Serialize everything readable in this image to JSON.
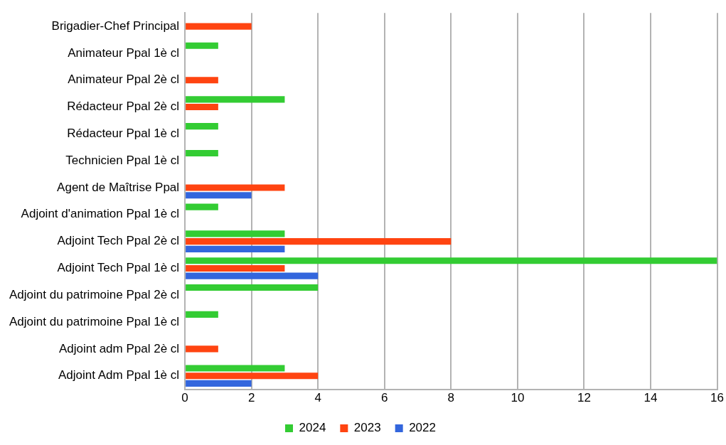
{
  "chart_data": {
    "type": "bar",
    "orientation": "horizontal",
    "categories": [
      "Brigadier-Chef Principal",
      "Animateur Ppal 1è cl",
      "Animateur Ppal 2è cl",
      "Rédacteur Ppal 2è cl",
      "Rédacteur Ppal 1è cl",
      "Technicien Ppal 1è cl",
      "Agent de Maîtrise Ppal",
      "Adjoint d'animation Ppal 1è cl",
      "Adjoint Tech Ppal 2è cl",
      "Adjoint Tech Ppal 1è cl",
      "Adjoint du patrimoine Ppal 2è cl",
      "Adjoint du patrimoine Ppal 1è cl",
      "Adjoint adm Ppal 2è cl",
      "Adjoint Adm Ppal 1è cl"
    ],
    "series": [
      {
        "name": "2024",
        "color": "#33cc33",
        "values": [
          0,
          1,
          0,
          3,
          1,
          1,
          0,
          1,
          3,
          16,
          4,
          1,
          0,
          3
        ]
      },
      {
        "name": "2023",
        "color": "#ff4411",
        "values": [
          2,
          0,
          1,
          1,
          0,
          0,
          3,
          0,
          8,
          3,
          0,
          0,
          1,
          4
        ]
      },
      {
        "name": "2022",
        "color": "#3366dd",
        "values": [
          0,
          0,
          0,
          0,
          0,
          0,
          2,
          0,
          3,
          4,
          0,
          0,
          0,
          2
        ]
      }
    ],
    "xlim": [
      0,
      16
    ],
    "xticks": [
      0,
      2,
      4,
      6,
      8,
      10,
      12,
      14,
      16
    ],
    "grid": "x",
    "legend": "bottom"
  }
}
